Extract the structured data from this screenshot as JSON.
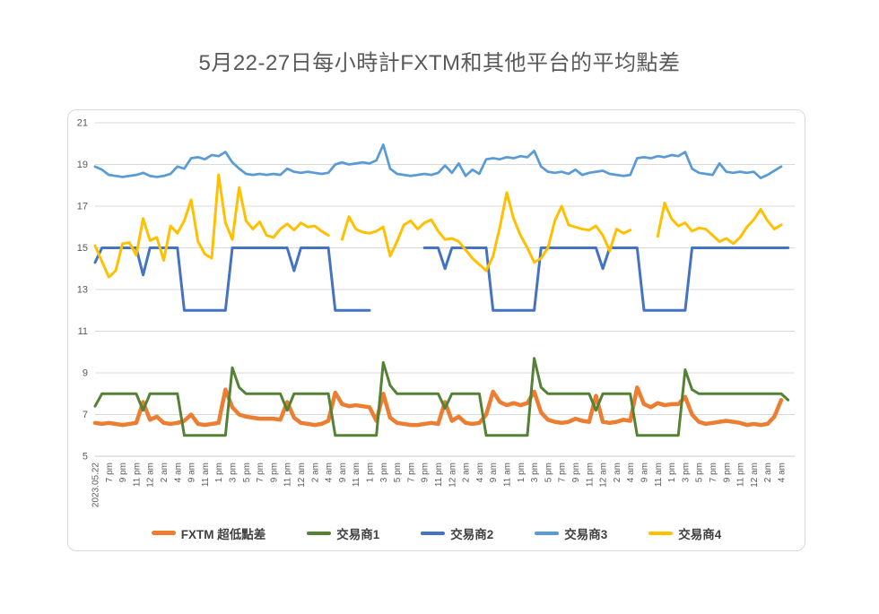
{
  "title": "5月22-27日每小時計FXTM和其他平台的平均點差",
  "chart_data": {
    "type": "line",
    "title": "5月22-27日每小時計FXTM和其他平台的平均點差",
    "xlabel": "",
    "ylabel": "",
    "ylim": [
      5,
      21
    ],
    "y_ticks": [
      21,
      19,
      17,
      15,
      13,
      11,
      9,
      7,
      5
    ],
    "grid": true,
    "legend_position": "bottom",
    "x_points_per_label": 2,
    "x_tick_labels": [
      "2023.05.22",
      "7 pm",
      "9 pm",
      "11 pm",
      "12 am",
      "2 am",
      "4 am",
      "9 am",
      "11 am",
      "1 pm",
      "3 pm",
      "5 pm",
      "7 pm",
      "9 pm",
      "11 pm",
      "12 am",
      "2 am",
      "4 am",
      "9 am",
      "11 am",
      "1 pm",
      "3 pm",
      "5 pm",
      "7 pm",
      "9 pm",
      "11 pm",
      "12 am",
      "2 am",
      "4 am",
      "9 am",
      "11 am",
      "1 pm",
      "3 pm",
      "5 pm",
      "7 pm",
      "9 pm",
      "11 pm",
      "12 am",
      "2 am",
      "4 am",
      "9 am",
      "11 am",
      "1 pm",
      "3 pm",
      "5 pm",
      "7 pm",
      "9 pm",
      "11 pm",
      "12 am",
      "2 am",
      "4 am"
    ],
    "series": [
      {
        "name": "FXTM 超低點差",
        "color": "#ED7D31",
        "values": [
          6.6,
          6.55,
          6.6,
          6.55,
          6.5,
          6.55,
          6.6,
          7.6,
          6.75,
          6.9,
          6.6,
          6.55,
          6.6,
          6.7,
          7.0,
          6.55,
          6.5,
          6.55,
          6.6,
          8.2,
          7.35,
          7.0,
          6.9,
          6.85,
          6.8,
          6.8,
          6.8,
          6.75,
          7.6,
          6.85,
          6.6,
          6.55,
          6.5,
          6.55,
          6.7,
          8.05,
          7.5,
          7.4,
          7.45,
          7.4,
          7.35,
          6.7,
          8.0,
          6.85,
          6.6,
          6.55,
          6.5,
          6.5,
          6.55,
          6.6,
          6.55,
          7.6,
          6.7,
          6.9,
          6.6,
          6.55,
          6.6,
          7.0,
          8.1,
          7.6,
          7.45,
          7.55,
          7.45,
          7.55,
          8.1,
          7.1,
          6.75,
          6.65,
          6.6,
          6.65,
          6.8,
          6.7,
          6.65,
          7.9,
          6.65,
          6.6,
          6.65,
          6.75,
          6.7,
          8.3,
          7.5,
          7.35,
          7.55,
          7.45,
          7.5,
          7.5,
          7.85,
          7.0,
          6.65,
          6.55,
          6.6,
          6.65,
          6.7,
          6.65,
          6.6,
          6.5,
          6.55,
          6.5,
          6.55,
          6.9,
          7.7
        ]
      },
      {
        "name": "交易商1",
        "color": "#548235",
        "values": [
          7.4,
          8,
          8,
          8,
          8,
          8,
          8,
          7.2,
          8,
          8,
          8,
          8,
          8,
          6,
          6,
          6,
          6,
          6,
          6,
          6,
          9.25,
          8.3,
          8,
          8,
          8,
          8,
          8,
          8,
          7.2,
          8,
          8,
          8,
          8,
          8,
          8,
          6,
          6,
          6,
          6,
          6,
          6,
          6,
          9.5,
          8.4,
          8,
          8,
          8,
          8,
          8,
          8,
          8,
          7.3,
          8,
          8,
          8,
          8,
          8,
          6,
          6,
          6,
          6,
          6,
          6,
          6,
          9.7,
          8.3,
          8,
          8,
          8,
          8,
          8,
          8,
          8,
          7.2,
          8,
          8,
          8,
          8,
          8,
          6,
          6,
          6,
          6,
          6,
          6,
          6,
          9.15,
          8.2,
          8,
          8,
          8,
          8,
          8,
          8,
          8,
          8,
          8,
          8,
          8,
          8,
          8,
          7.7
        ]
      },
      {
        "name": "交易商2",
        "color": "#4472C4",
        "values": [
          14.3,
          15,
          15,
          15,
          15,
          15,
          15,
          13.7,
          15,
          15,
          15,
          15,
          15,
          12,
          12,
          12,
          12,
          12,
          12,
          12,
          15,
          15,
          15,
          15,
          15,
          15,
          15,
          15,
          15,
          13.9,
          15,
          15,
          15,
          15,
          15,
          12,
          12,
          12,
          12,
          12,
          12,
          null,
          null,
          null,
          null,
          null,
          null,
          null,
          15,
          15,
          15,
          14,
          15,
          15,
          15,
          15,
          15,
          15,
          12,
          12,
          12,
          12,
          12,
          12,
          12,
          15,
          15,
          15,
          15,
          15,
          15,
          15,
          15,
          15,
          14,
          15,
          15,
          15,
          15,
          15,
          12,
          12,
          12,
          12,
          12,
          12,
          12,
          15,
          15,
          15,
          15,
          15,
          15,
          15,
          15,
          15,
          15,
          15,
          15,
          15,
          15,
          15
        ]
      },
      {
        "name": "交易商3",
        "color": "#5B9BD5",
        "values": [
          18.9,
          18.75,
          18.5,
          18.45,
          18.4,
          18.45,
          18.5,
          18.6,
          18.45,
          18.4,
          18.45,
          18.55,
          18.9,
          18.8,
          19.3,
          19.35,
          19.25,
          19.45,
          19.4,
          19.6,
          19.1,
          18.8,
          18.55,
          18.5,
          18.55,
          18.5,
          18.55,
          18.5,
          18.8,
          18.65,
          18.6,
          18.65,
          18.6,
          18.55,
          18.6,
          19.0,
          19.1,
          19.0,
          19.05,
          19.1,
          19.05,
          19.2,
          19.95,
          18.8,
          18.55,
          18.5,
          18.45,
          18.5,
          18.55,
          18.5,
          18.6,
          18.95,
          18.6,
          19.05,
          18.45,
          18.75,
          18.55,
          19.25,
          19.3,
          19.25,
          19.35,
          19.3,
          19.4,
          19.35,
          19.65,
          18.9,
          18.65,
          18.6,
          18.65,
          18.55,
          18.75,
          18.5,
          18.6,
          18.65,
          18.7,
          18.55,
          18.5,
          18.45,
          18.5,
          19.3,
          19.35,
          19.3,
          19.4,
          19.35,
          19.45,
          19.4,
          19.6,
          18.8,
          18.6,
          18.55,
          18.5,
          19.05,
          18.65,
          18.6,
          18.65,
          18.6,
          18.65,
          18.35,
          18.5,
          18.7,
          18.9
        ]
      },
      {
        "name": "交易商4",
        "color": "#FFC000",
        "values": [
          15.1,
          14.35,
          13.6,
          13.9,
          15.2,
          15.25,
          14.65,
          16.4,
          15.35,
          15.5,
          14.4,
          16.05,
          15.7,
          16.3,
          17.3,
          15.3,
          14.7,
          14.5,
          18.5,
          16.2,
          15.4,
          17.9,
          16.3,
          15.9,
          16.25,
          15.6,
          15.5,
          15.9,
          16.15,
          15.85,
          16.2,
          16.0,
          16.05,
          15.8,
          15.6,
          null,
          15.4,
          16.5,
          15.9,
          15.75,
          15.7,
          15.8,
          16.0,
          14.6,
          15.3,
          16.1,
          16.3,
          15.9,
          16.2,
          16.35,
          15.8,
          15.4,
          15.45,
          15.3,
          14.9,
          14.5,
          14.2,
          13.9,
          14.6,
          16.0,
          17.65,
          16.4,
          15.6,
          15.0,
          14.3,
          14.5,
          15.0,
          16.3,
          17.0,
          16.1,
          16.0,
          15.9,
          15.85,
          16.05,
          15.6,
          14.85,
          15.9,
          15.7,
          15.85,
          null,
          null,
          null,
          15.55,
          17.15,
          16.4,
          16.05,
          16.2,
          15.8,
          15.95,
          15.9,
          15.6,
          15.3,
          15.45,
          15.2,
          15.5,
          16.0,
          16.35,
          16.85,
          16.3,
          15.9,
          16.1
        ]
      }
    ]
  },
  "style": {
    "grid_color": "#D9D9D9",
    "axis_line_color": "#C9C9C9",
    "tick_text_color": "#595959",
    "title_color": "#595959",
    "legend_text_color": "#404040"
  }
}
